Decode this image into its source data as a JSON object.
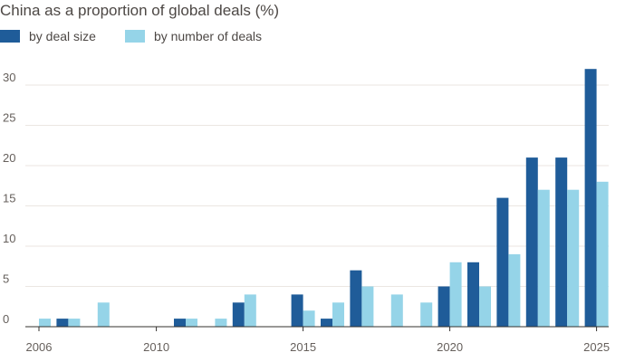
{
  "chart_data": {
    "type": "bar",
    "title": "China as a proportion of global deals (%)",
    "xlabel": "",
    "ylabel": "",
    "ylim": [
      0,
      33
    ],
    "yticks": [
      0,
      5,
      10,
      15,
      20,
      25,
      30
    ],
    "xticks": [
      2006,
      2010,
      2015,
      2020,
      2025
    ],
    "grid": true,
    "legend_position": "top-left",
    "categories": [
      2006,
      2007,
      2008,
      2009,
      2010,
      2011,
      2012,
      2013,
      2014,
      2015,
      2016,
      2017,
      2018,
      2019,
      2020,
      2021,
      2022,
      2023,
      2024,
      2025
    ],
    "series": [
      {
        "name": "by deal size",
        "color": "#1f5c99",
        "values": [
          0,
          1,
          0,
          0,
          0,
          1,
          0,
          3,
          0,
          4,
          1,
          7,
          0,
          0,
          5,
          8,
          16,
          21,
          21,
          32
        ]
      },
      {
        "name": "by number of deals",
        "color": "#95d4e8",
        "values": [
          1,
          1,
          3,
          0,
          0,
          1,
          1,
          4,
          0,
          2,
          3,
          5,
          4,
          3,
          8,
          5,
          9,
          17,
          17,
          18
        ]
      }
    ]
  }
}
